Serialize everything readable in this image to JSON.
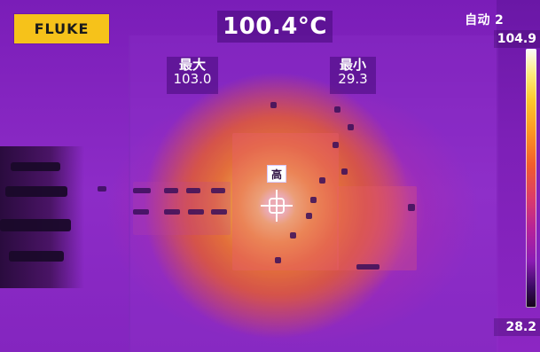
{
  "app": {
    "brand": "FLUKE",
    "headline_temp": "100.4°C",
    "mode_label": "自动 2"
  },
  "labels": {
    "max_title": "最大",
    "max_value": "103.0",
    "min_title": "最小",
    "min_value": "29.3"
  },
  "scale": {
    "top_value": "104.9",
    "bottom_value": "28.2"
  },
  "markers": {
    "hot_label": "高"
  },
  "icons": {
    "crosshair": "crosshair-icon"
  },
  "colors": {
    "brand_yellow": "#f6c21a",
    "overlay_purple": "#46107a",
    "text_white": "#ffffff"
  }
}
